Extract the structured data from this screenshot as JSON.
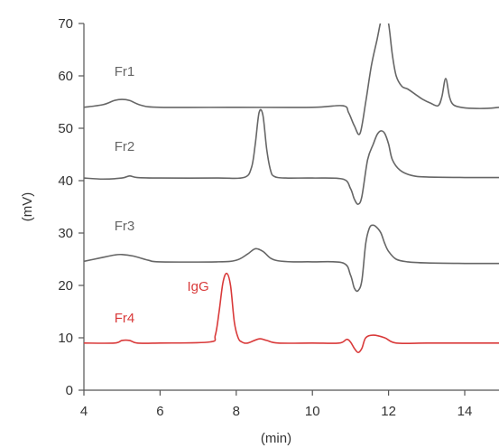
{
  "chart_data": {
    "type": "line",
    "title": "",
    "xlabel": "(min)",
    "ylabel": "(mV)",
    "xlim": [
      4,
      14.9
    ],
    "ylim": [
      0,
      70
    ],
    "x_ticks": [
      4,
      6,
      8,
      10,
      12,
      14
    ],
    "y_ticks": [
      0,
      10,
      20,
      30,
      40,
      50,
      60,
      70
    ],
    "grid": false,
    "series": [
      {
        "name": "Fr1",
        "color": "#666666",
        "baseline": 54,
        "x": [
          4.0,
          4.5,
          4.8,
          5.0,
          5.2,
          5.5,
          6.0,
          8.0,
          10.0,
          10.8,
          10.95,
          11.1,
          11.25,
          11.4,
          11.55,
          11.7,
          11.8,
          11.9,
          12.0,
          12.1,
          12.2,
          12.35,
          12.5,
          12.7,
          12.9,
          13.1,
          13.3,
          13.4,
          13.5,
          13.6,
          13.7,
          13.9,
          14.2,
          14.6,
          14.9
        ],
        "y": [
          54.0,
          54.5,
          55.3,
          55.5,
          55.3,
          54.4,
          54.0,
          54.0,
          54.0,
          54.3,
          53.0,
          50.5,
          49.0,
          55.0,
          62.0,
          67.0,
          70.5,
          72.0,
          70.0,
          64.0,
          60.0,
          58.0,
          57.5,
          56.5,
          55.5,
          54.8,
          54.3,
          56.0,
          59.5,
          56.0,
          54.5,
          54.0,
          53.8,
          53.8,
          54.0
        ]
      },
      {
        "name": "Fr2",
        "color": "#666666",
        "baseline": 40.5,
        "x": [
          4.0,
          4.5,
          5.0,
          5.2,
          5.4,
          6.0,
          7.5,
          8.2,
          8.4,
          8.5,
          8.6,
          8.7,
          8.8,
          8.9,
          9.0,
          9.3,
          10.0,
          10.8,
          11.0,
          11.1,
          11.2,
          11.3,
          11.45,
          11.6,
          11.7,
          11.8,
          11.9,
          12.0,
          12.1,
          12.3,
          12.6,
          13.0,
          14.0,
          14.9
        ],
        "y": [
          40.5,
          40.3,
          40.5,
          40.9,
          40.6,
          40.5,
          40.5,
          40.6,
          42.5,
          47.0,
          53.0,
          52.5,
          46.0,
          42.0,
          40.8,
          40.5,
          40.5,
          40.3,
          38.5,
          36.5,
          35.5,
          37.0,
          44.0,
          47.0,
          48.8,
          49.5,
          49.0,
          47.0,
          44.0,
          42.0,
          41.0,
          40.7,
          40.6,
          40.6
        ]
      },
      {
        "name": "Fr3",
        "color": "#666666",
        "baseline": 24.5,
        "x": [
          4.0,
          4.4,
          4.8,
          5.0,
          5.3,
          5.7,
          6.0,
          7.5,
          8.0,
          8.3,
          8.5,
          8.7,
          8.9,
          9.1,
          9.5,
          10.0,
          10.8,
          11.0,
          11.1,
          11.2,
          11.3,
          11.4,
          11.5,
          11.6,
          11.7,
          11.8,
          11.9,
          12.0,
          12.2,
          12.5,
          13.0,
          14.0,
          14.9
        ],
        "y": [
          24.6,
          25.2,
          25.8,
          25.9,
          25.6,
          24.8,
          24.5,
          24.5,
          24.8,
          26.0,
          27.0,
          26.5,
          25.2,
          24.7,
          24.5,
          24.5,
          24.3,
          22.0,
          19.5,
          19.0,
          21.0,
          28.0,
          31.0,
          31.5,
          31.0,
          30.0,
          28.0,
          26.5,
          25.0,
          24.5,
          24.3,
          24.2,
          24.2
        ]
      },
      {
        "name": "Fr4",
        "color": "#d93a3a",
        "baseline": 9,
        "x": [
          4.0,
          4.8,
          5.0,
          5.2,
          5.4,
          6.0,
          7.3,
          7.45,
          7.55,
          7.65,
          7.75,
          7.85,
          7.95,
          8.05,
          8.15,
          8.3,
          8.6,
          8.8,
          9.1,
          10.0,
          10.7,
          10.9,
          11.0,
          11.1,
          11.2,
          11.3,
          11.4,
          11.6,
          11.9,
          12.2,
          13.0,
          14.0,
          14.9
        ],
        "y": [
          9.0,
          9.0,
          9.5,
          9.5,
          9.0,
          9.0,
          9.2,
          10.5,
          15.0,
          20.5,
          22.3,
          20.0,
          13.0,
          10.0,
          9.2,
          9.0,
          9.8,
          9.5,
          9.0,
          9.0,
          9.0,
          9.7,
          9.2,
          8.0,
          7.2,
          8.0,
          10.0,
          10.5,
          10.0,
          9.0,
          9.0,
          9.0,
          9.0
        ]
      }
    ],
    "annotations": [
      {
        "text": "IgG",
        "x": 7.0,
        "y": 19.0,
        "color": "#d93a3a"
      }
    ]
  }
}
